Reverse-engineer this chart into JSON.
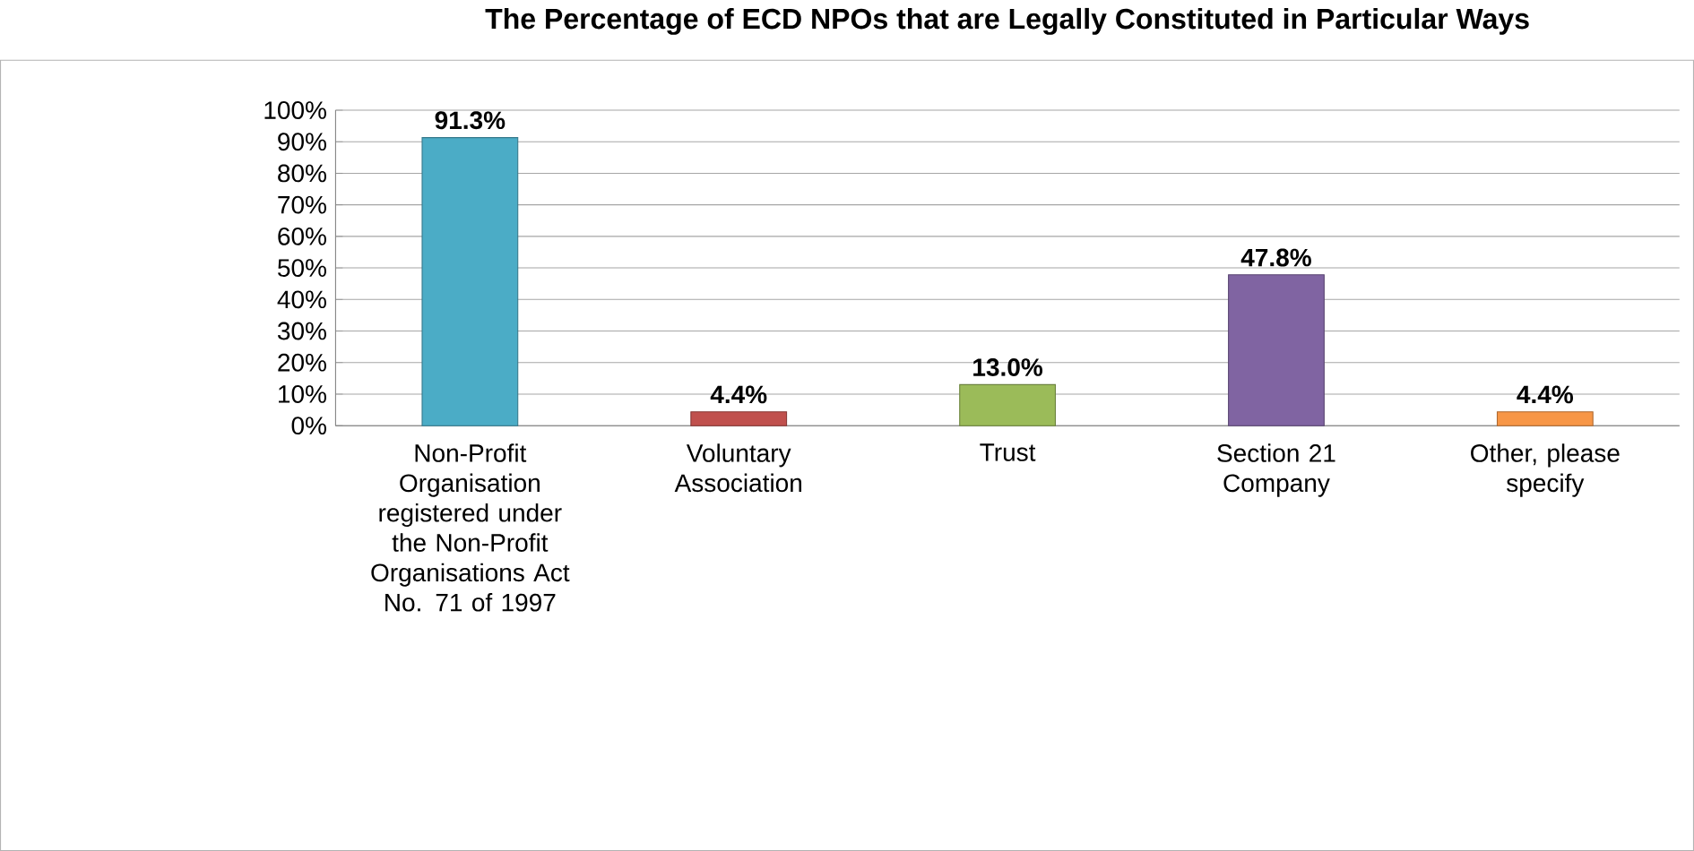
{
  "chart_data": {
    "type": "bar",
    "title": "The Percentage of ECD NPOs that are Legally Constituted in Particular Ways",
    "categories": [
      "Non-Profit Organisation registered under the Non-Profit Organisations Act No. 71 of 1997",
      "Voluntary Association",
      "Trust",
      "Section 21 Company",
      "Other, please specify"
    ],
    "values": [
      91.3,
      4.4,
      13.0,
      47.8,
      4.4
    ],
    "value_labels": [
      "91.3%",
      "4.4%",
      "13.0%",
      "47.8%",
      "4.4%"
    ],
    "colors": [
      "#4bacc6",
      "#c0504d",
      "#9bbb59",
      "#8064a2",
      "#f79646"
    ],
    "ylim": [
      0,
      100
    ],
    "yticks": [
      {
        "value": 0,
        "label": "0%"
      },
      {
        "value": 10,
        "label": "10%"
      },
      {
        "value": 20,
        "label": "20%"
      },
      {
        "value": 30,
        "label": "30%"
      },
      {
        "value": 40,
        "label": "40%"
      },
      {
        "value": 50,
        "label": "50%"
      },
      {
        "value": 60,
        "label": "60%"
      },
      {
        "value": 70,
        "label": "70%"
      },
      {
        "value": 80,
        "label": "80%"
      },
      {
        "value": 90,
        "label": "90%"
      },
      {
        "value": 100,
        "label": "100%"
      }
    ],
    "grid": "y"
  }
}
